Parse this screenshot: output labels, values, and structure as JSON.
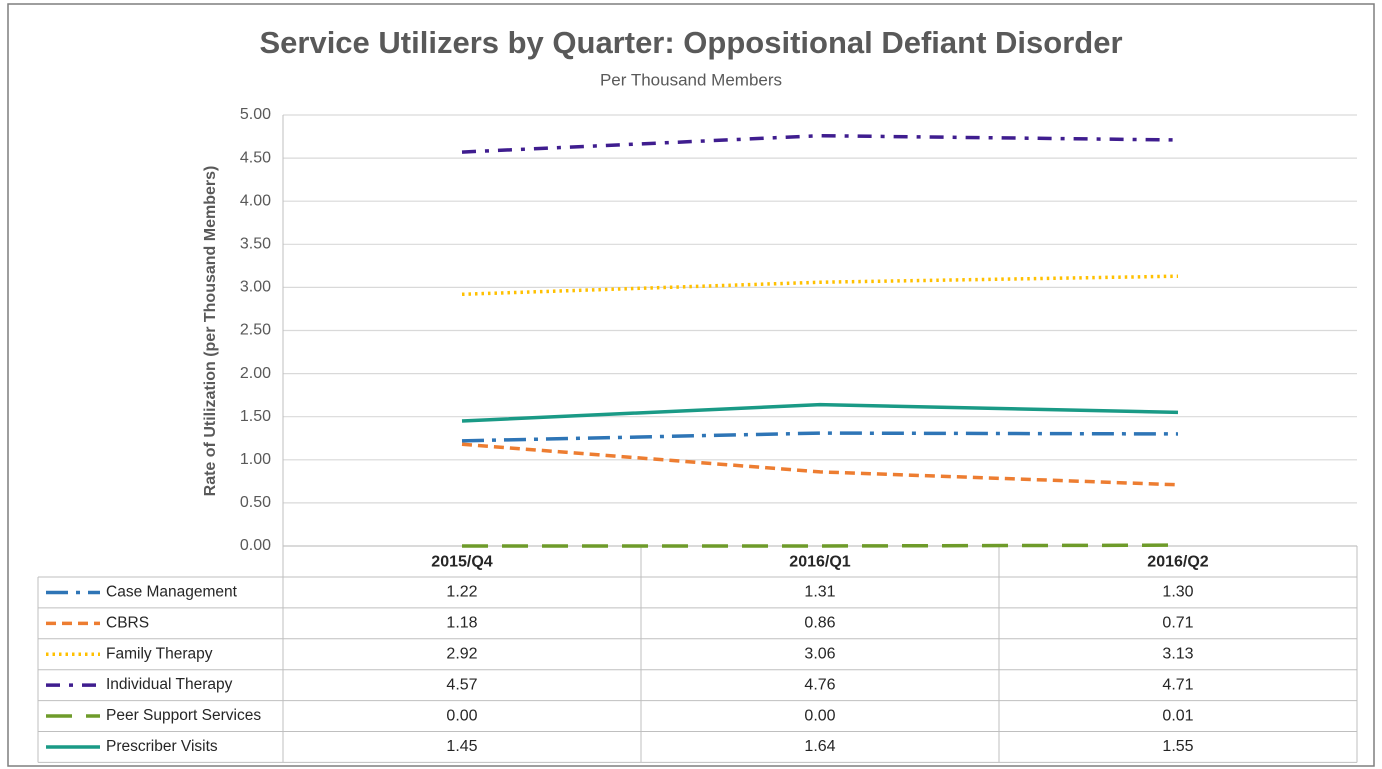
{
  "chart_data": {
    "type": "line",
    "title": "Service Utilizers by Quarter: Oppositional Defiant Disorder",
    "subtitle": "Per Thousand Members",
    "y_label": "Rate of Utilization (per Thousand Members)",
    "categories": [
      "2015/Q4",
      "2016/Q1",
      "2016/Q2"
    ],
    "ylim": [
      0,
      5
    ],
    "yticks": [
      {
        "value": 0,
        "label": "0.00"
      },
      {
        "value": 0.5,
        "label": "0.50"
      },
      {
        "value": 1,
        "label": "1.00"
      },
      {
        "value": 1.5,
        "label": "1.50"
      },
      {
        "value": 2,
        "label": "2.00"
      },
      {
        "value": 2.5,
        "label": "2.50"
      },
      {
        "value": 3,
        "label": "3.00"
      },
      {
        "value": 3.5,
        "label": "3.50"
      },
      {
        "value": 4,
        "label": "4.00"
      },
      {
        "value": 4.5,
        "label": "4.50"
      },
      {
        "value": 5,
        "label": "5.00"
      }
    ],
    "grid": true,
    "series": [
      {
        "name": "Case Management",
        "color": "#2e75b6",
        "style": "long-dash-dot",
        "values": [
          1.22,
          1.31,
          1.3
        ],
        "value_labels": [
          "1.22",
          "1.31",
          "1.30"
        ]
      },
      {
        "name": "CBRS",
        "color": "#ed7d31",
        "style": "dash",
        "values": [
          1.18,
          0.86,
          0.71
        ],
        "value_labels": [
          "1.18",
          "0.86",
          "0.71"
        ]
      },
      {
        "name": "Family Therapy",
        "color": "#ffc000",
        "style": "dot",
        "values": [
          2.92,
          3.06,
          3.13
        ],
        "value_labels": [
          "2.92",
          "3.06",
          "3.13"
        ]
      },
      {
        "name": "Individual Therapy",
        "color": "#3f1d8f",
        "style": "dash-dot",
        "values": [
          4.57,
          4.76,
          4.71
        ],
        "value_labels": [
          "4.57",
          "4.76",
          "4.71"
        ]
      },
      {
        "name": "Peer Support Services",
        "color": "#6e9b2a",
        "style": "long-dash",
        "values": [
          0,
          0,
          0.01
        ],
        "value_labels": [
          "0.00",
          "0.00",
          "0.01"
        ]
      },
      {
        "name": "Prescriber Visits",
        "color": "#1a9a86",
        "style": "solid",
        "values": [
          1.45,
          1.64,
          1.55
        ],
        "value_labels": [
          "1.45",
          "1.64",
          "1.55"
        ]
      }
    ]
  }
}
